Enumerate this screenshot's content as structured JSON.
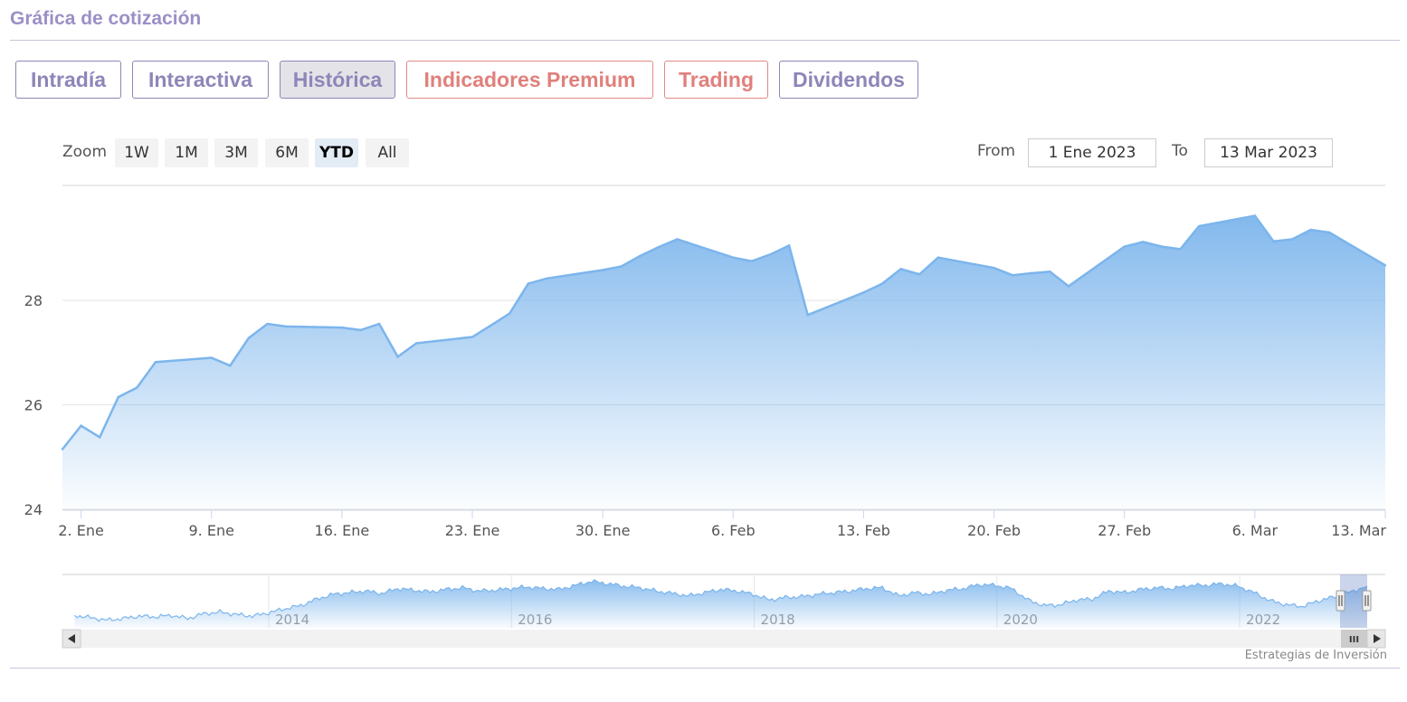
{
  "header": {
    "title": "Gráfica de cotización"
  },
  "tabs": [
    {
      "label": "Intradía",
      "active": false,
      "premium": false
    },
    {
      "label": "Interactiva",
      "active": false,
      "premium": false
    },
    {
      "label": "Histórica",
      "active": true,
      "premium": false
    },
    {
      "label": "Indicadores Premium",
      "active": false,
      "premium": true
    },
    {
      "label": "Trading",
      "active": false,
      "premium": true
    },
    {
      "label": "Dividendos",
      "active": false,
      "premium": false
    }
  ],
  "zoom": {
    "label": "Zoom",
    "buttons": [
      "1W",
      "1M",
      "3M",
      "6M",
      "YTD",
      "All"
    ],
    "selected": "YTD"
  },
  "range": {
    "from_label": "From",
    "from_value": "1 Ene 2023",
    "to_label": "To",
    "to_value": "13 Mar 2023"
  },
  "chart_data": {
    "type": "area",
    "title": "",
    "xlabel": "",
    "ylabel": "",
    "x_ticks": [
      "2. Ene",
      "9. Ene",
      "16. Ene",
      "23. Ene",
      "30. Ene",
      "6. Feb",
      "13. Feb",
      "20. Feb",
      "27. Feb",
      "6. Mar",
      "13. Mar"
    ],
    "y_ticks": [
      "24",
      "26",
      "28"
    ],
    "ylim": [
      24,
      30.2
    ],
    "grid": true,
    "legend": "none",
    "color": "#7cb5ec",
    "x": [
      "2023-01-01",
      "2023-01-02",
      "2023-01-03",
      "2023-01-04",
      "2023-01-05",
      "2023-01-06",
      "2023-01-09",
      "2023-01-10",
      "2023-01-11",
      "2023-01-12",
      "2023-01-13",
      "2023-01-16",
      "2023-01-17",
      "2023-01-18",
      "2023-01-19",
      "2023-01-20",
      "2023-01-23",
      "2023-01-24",
      "2023-01-25",
      "2023-01-26",
      "2023-01-27",
      "2023-01-30",
      "2023-01-31",
      "2023-02-01",
      "2023-02-02",
      "2023-02-03",
      "2023-02-06",
      "2023-02-07",
      "2023-02-08",
      "2023-02-09",
      "2023-02-10",
      "2023-02-13",
      "2023-02-14",
      "2023-02-15",
      "2023-02-16",
      "2023-02-17",
      "2023-02-20",
      "2023-02-21",
      "2023-02-22",
      "2023-02-23",
      "2023-02-24",
      "2023-02-27",
      "2023-02-28",
      "2023-03-01",
      "2023-03-02",
      "2023-03-03",
      "2023-03-06",
      "2023-03-07",
      "2023-03-08",
      "2023-03-09",
      "2023-03-10",
      "2023-03-13"
    ],
    "values": [
      25.15,
      25.6,
      25.38,
      26.15,
      26.33,
      26.82,
      26.9,
      26.75,
      27.28,
      27.55,
      27.5,
      27.48,
      27.43,
      27.55,
      26.92,
      27.18,
      27.3,
      27.52,
      27.75,
      28.32,
      28.42,
      28.58,
      28.65,
      28.85,
      29.02,
      29.17,
      28.82,
      28.75,
      28.88,
      29.05,
      27.72,
      28.15,
      28.32,
      28.6,
      28.5,
      28.82,
      28.62,
      28.48,
      28.52,
      28.55,
      28.27,
      29.03,
      29.12,
      29.03,
      28.98,
      29.42,
      29.62,
      29.13,
      29.17,
      29.35,
      29.3,
      28.67
    ],
    "navigator": {
      "ticks": [
        "2014",
        "2016",
        "2018",
        "2020",
        "2022"
      ],
      "start_year": 2012.3,
      "end_year": 2023.2,
      "values": [
        25.6,
        25.3,
        25.0,
        25.2,
        25.5,
        25.4,
        25.6,
        25.2,
        25.8,
        26.0,
        25.7,
        25.5,
        25.9,
        26.4,
        26.8,
        27.6,
        28.2,
        28.4,
        28.6,
        28.3,
        28.9,
        28.7,
        28.5,
        28.8,
        29.0,
        28.6,
        28.7,
        28.9,
        29.1,
        28.9,
        28.8,
        29.3,
        29.8,
        29.5,
        29.2,
        29.0,
        28.6,
        28.3,
        28.0,
        28.4,
        28.8,
        28.6,
        28.2,
        27.5,
        27.8,
        27.9,
        28.2,
        28.4,
        28.6,
        28.9,
        29.0,
        28.0,
        28.4,
        28.2,
        28.7,
        28.9,
        29.4,
        29.3,
        28.9,
        27.5,
        26.8,
        26.9,
        27.5,
        27.6,
        28.6,
        28.4,
        28.8,
        29.0,
        28.9,
        29.3,
        29.3,
        29.5,
        29.2,
        28.4,
        27.4,
        26.9,
        26.7,
        27.4,
        27.9,
        28.5,
        29.2
      ]
    }
  },
  "scrollbar": {
    "left_arrow": "◂",
    "right_arrow": "▸",
    "grip": "III"
  },
  "footer": {
    "source": "Estrategias de Inversión"
  }
}
